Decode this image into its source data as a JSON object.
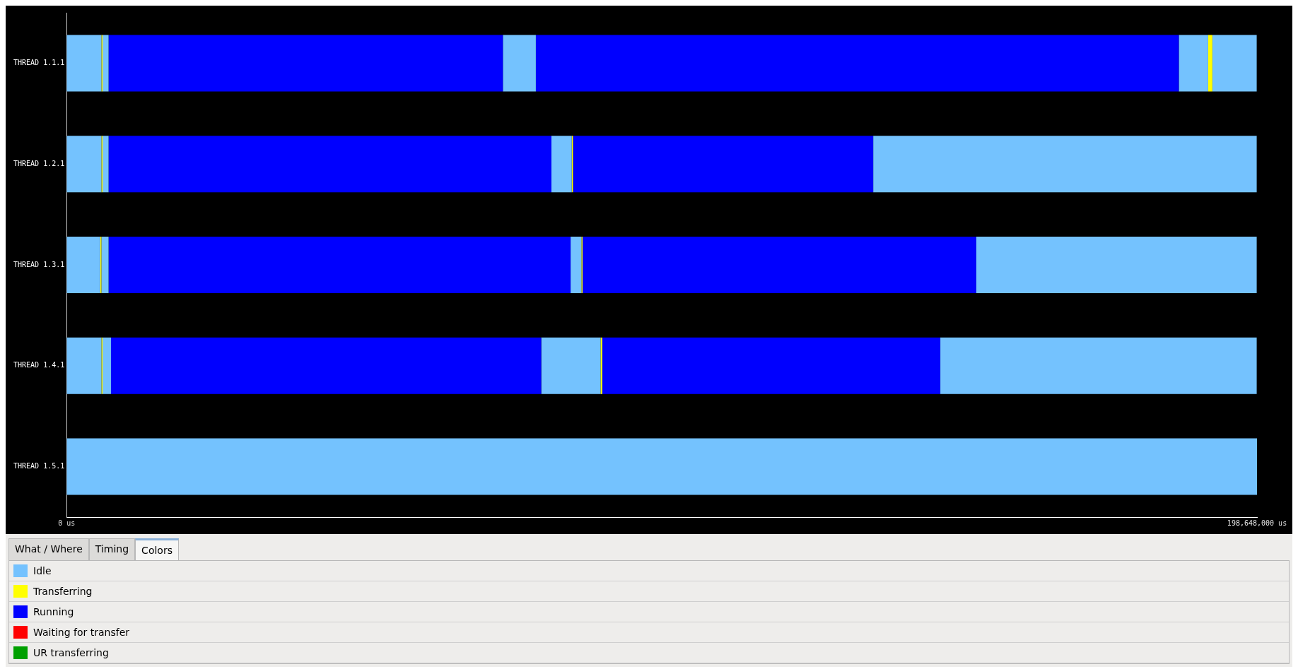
{
  "chart_data": {
    "type": "bar",
    "orientation": "horizontal",
    "categories": [
      "THREAD 1.1.1",
      "THREAD 1.2.1",
      "THREAD 1.3.1",
      "THREAD 1.4.1",
      "THREAD 1.5.1"
    ],
    "xlim": [
      0,
      198648000
    ],
    "xticks": [
      {
        "value": 0,
        "label": "0 us"
      },
      {
        "value": 198648000,
        "label": "198,648,000 us"
      }
    ],
    "grid": false,
    "legend": "bottom",
    "annotations": [
      "What / Where",
      "Timing",
      "Colors"
    ],
    "series": [
      {
        "name": "Idle",
        "color": "#74c2fe",
        "base": [
          0,
          0,
          0,
          0,
          0
        ],
        "values": [
          5800000,
          5800000,
          5600000,
          5800000,
          198648000
        ]
      },
      {
        "name": "Transferring",
        "color": "#ffff00",
        "base": [
          5800000,
          5800000,
          5600000,
          5800000,
          null
        ],
        "values": [
          200000,
          200000,
          200000,
          200000,
          null
        ]
      },
      {
        "color": "#74c2fe",
        "base": [
          6000000,
          6000000,
          5800000,
          6000000,
          null
        ],
        "values": [
          1000000,
          1000000,
          1200000,
          1400000,
          null
        ]
      },
      {
        "name": "Running",
        "color": "#0000ff",
        "base": [
          7000000,
          7000000,
          7000000,
          7400000,
          null
        ],
        "values": [
          65800000,
          73900000,
          77100000,
          71800000,
          null
        ]
      },
      {
        "color": "#74c2fe",
        "base": [
          72800000,
          80900000,
          84100000,
          79200000,
          null
        ],
        "values": [
          5500000,
          3400000,
          1800000,
          9900000,
          null
        ]
      },
      {
        "color": "#ffff00",
        "base": [
          null,
          84300000,
          85900000,
          89100000,
          null
        ],
        "values": [
          null,
          200000,
          200000,
          300000,
          null
        ]
      },
      {
        "color": "#0000ff",
        "base": [
          78300000,
          84500000,
          86100000,
          89400000,
          null
        ],
        "values": [
          107300000,
          50100000,
          65700000,
          56400000,
          null
        ]
      },
      {
        "color": "#74c2fe",
        "base": [
          185600000,
          134600000,
          151800000,
          145800000,
          null
        ],
        "values": [
          4900000,
          64000000,
          46800000,
          52800000,
          null
        ]
      },
      {
        "color": "#ffff00",
        "base": [
          190500000,
          null,
          null,
          null,
          null
        ],
        "values": [
          700000,
          null,
          null,
          null,
          null
        ]
      },
      {
        "color": "#74c2fe",
        "base": [
          191200000,
          null,
          null,
          null,
          null
        ],
        "values": [
          7400000,
          null,
          null,
          null,
          null
        ]
      },
      {
        "name": "Waiting for transfer",
        "color": "#ff0000",
        "base": [
          null,
          null,
          null,
          null,
          null
        ],
        "values": [
          null,
          null,
          null,
          null,
          null
        ]
      },
      {
        "name": "UR transferring",
        "color": "#00a000",
        "base": [
          null,
          null,
          null,
          null,
          null
        ],
        "values": [
          null,
          null,
          null,
          null,
          null
        ]
      }
    ]
  }
}
